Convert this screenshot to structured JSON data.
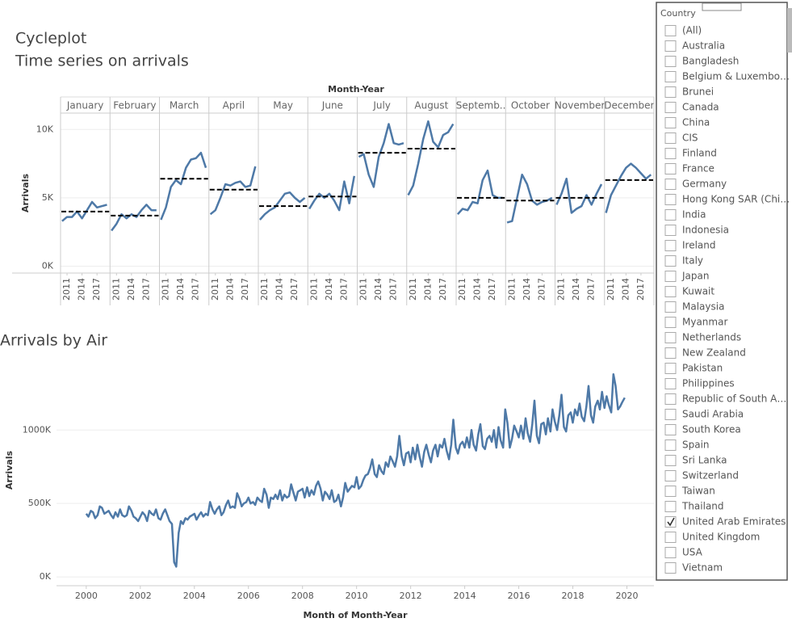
{
  "chart_data": [
    {
      "type": "cycleplot",
      "title": "Cycleplot",
      "subtitle": "Time series on arrivals",
      "column_header": "Month-Year",
      "y_label": "Arrivals",
      "categories": [
        "January",
        "February",
        "March",
        "April",
        "May",
        "June",
        "July",
        "August",
        "Septemb..",
        "October",
        "November",
        "December"
      ],
      "x": [
        2010,
        2011,
        2012,
        2013,
        2014,
        2015,
        2016,
        2017,
        2018,
        2019
      ],
      "xlim": [
        2009.7,
        2019.6
      ],
      "xticks": [
        2011,
        2014,
        2017
      ],
      "ylim": [
        -500,
        11200
      ],
      "yticks": [
        {
          "value": 0,
          "label": "0K"
        },
        {
          "value": 5000,
          "label": "5K"
        },
        {
          "value": 10000,
          "label": "10K"
        }
      ],
      "color": "#4e79a7",
      "average_color": "#000000",
      "grid": true,
      "panels": [
        {
          "values": [
            3300,
            3600,
            3600,
            4000,
            3500,
            4100,
            4700,
            4300,
            4400,
            4500
          ],
          "average": 4000
        },
        {
          "values": [
            2600,
            3100,
            3800,
            3500,
            3800,
            3600,
            4100,
            4500,
            4100,
            4100
          ],
          "average": 3700
        },
        {
          "values": [
            3400,
            4300,
            5800,
            6300,
            6000,
            7200,
            7800,
            7900,
            8300,
            7200
          ],
          "average": 6400
        },
        {
          "values": [
            3800,
            4100,
            5000,
            6000,
            5900,
            6100,
            6200,
            5800,
            5900,
            7300
          ],
          "average": 5600
        },
        {
          "values": [
            3400,
            3800,
            4100,
            4300,
            4800,
            5300,
            5400,
            5000,
            4700,
            5000
          ],
          "average": 4400
        },
        {
          "values": [
            4200,
            4800,
            5300,
            5000,
            5300,
            4800,
            4100,
            6200,
            4600,
            6600
          ],
          "average": 5100
        },
        {
          "values": [
            8000,
            8200,
            6700,
            5800,
            8000,
            9000,
            10400,
            9000,
            8900,
            9000
          ],
          "average": 8300
        },
        {
          "values": [
            5200,
            5900,
            7500,
            9300,
            10600,
            9100,
            8700,
            9600,
            9800,
            10400
          ],
          "average": 8600
        },
        {
          "values": [
            3800,
            4200,
            4100,
            4700,
            4600,
            6300,
            7000,
            5200,
            5000,
            5000
          ],
          "average": 5000
        },
        {
          "values": [
            3200,
            3300,
            5000,
            6700,
            6000,
            4800,
            4500,
            4700,
            4800,
            5000
          ],
          "average": 4800
        },
        {
          "values": [
            4500,
            5300,
            6400,
            3900,
            4200,
            4400,
            5200,
            4500,
            5300,
            6000
          ],
          "average": 5000
        },
        {
          "values": [
            3900,
            5200,
            5900,
            6600,
            7200,
            7500,
            7200,
            6800,
            6400,
            6700
          ],
          "average": 6300
        }
      ]
    },
    {
      "type": "line",
      "title": "Arrivals by Air",
      "x_label": "Month of Month-Year",
      "y_label": "Arrivals",
      "color": "#4e79a7",
      "grid": true,
      "xlim": [
        1998.9,
        2021
      ],
      "xticks": [
        2000,
        2002,
        2004,
        2006,
        2008,
        2010,
        2012,
        2014,
        2016,
        2018,
        2020
      ],
      "ylim": [
        -60000,
        1480000
      ],
      "yticks": [
        {
          "value": 0,
          "label": "0K"
        },
        {
          "value": 500000,
          "label": "500K"
        },
        {
          "value": 1000000,
          "label": "1000K"
        }
      ],
      "x": [
        2000,
        2000.08,
        2000.17,
        2000.25,
        2000.33,
        2000.42,
        2000.5,
        2000.58,
        2000.67,
        2000.75,
        2000.83,
        2000.92,
        2001,
        2001.08,
        2001.17,
        2001.25,
        2001.33,
        2001.42,
        2001.5,
        2001.58,
        2001.67,
        2001.75,
        2001.83,
        2001.92,
        2002,
        2002.08,
        2002.17,
        2002.25,
        2002.33,
        2002.42,
        2002.5,
        2002.58,
        2002.67,
        2002.75,
        2002.83,
        2002.92,
        2003,
        2003.08,
        2003.17,
        2003.25,
        2003.33,
        2003.42,
        2003.5,
        2003.58,
        2003.67,
        2003.75,
        2003.83,
        2003.92,
        2004,
        2004.08,
        2004.17,
        2004.25,
        2004.33,
        2004.42,
        2004.5,
        2004.58,
        2004.67,
        2004.75,
        2004.83,
        2004.92,
        2005,
        2005.08,
        2005.17,
        2005.25,
        2005.33,
        2005.42,
        2005.5,
        2005.58,
        2005.67,
        2005.75,
        2005.83,
        2005.92,
        2006,
        2006.08,
        2006.17,
        2006.25,
        2006.33,
        2006.42,
        2006.5,
        2006.58,
        2006.67,
        2006.75,
        2006.83,
        2006.92,
        2007,
        2007.08,
        2007.17,
        2007.25,
        2007.33,
        2007.42,
        2007.5,
        2007.58,
        2007.67,
        2007.75,
        2007.83,
        2007.92,
        2008,
        2008.08,
        2008.17,
        2008.25,
        2008.33,
        2008.42,
        2008.5,
        2008.58,
        2008.67,
        2008.75,
        2008.83,
        2008.92,
        2009,
        2009.08,
        2009.17,
        2009.25,
        2009.33,
        2009.42,
        2009.5,
        2009.58,
        2009.67,
        2009.75,
        2009.83,
        2009.92,
        2010,
        2010.08,
        2010.17,
        2010.25,
        2010.33,
        2010.42,
        2010.5,
        2010.58,
        2010.67,
        2010.75,
        2010.83,
        2010.92,
        2011,
        2011.08,
        2011.17,
        2011.25,
        2011.33,
        2011.42,
        2011.5,
        2011.58,
        2011.67,
        2011.75,
        2011.83,
        2011.92,
        2012,
        2012.08,
        2012.17,
        2012.25,
        2012.33,
        2012.42,
        2012.5,
        2012.58,
        2012.67,
        2012.75,
        2012.83,
        2012.92,
        2013,
        2013.08,
        2013.17,
        2013.25,
        2013.33,
        2013.42,
        2013.5,
        2013.58,
        2013.67,
        2013.75,
        2013.83,
        2013.92,
        2014,
        2014.08,
        2014.17,
        2014.25,
        2014.33,
        2014.42,
        2014.5,
        2014.58,
        2014.67,
        2014.75,
        2014.83,
        2014.92,
        2015,
        2015.08,
        2015.17,
        2015.25,
        2015.33,
        2015.42,
        2015.5,
        2015.58,
        2015.67,
        2015.75,
        2015.83,
        2015.92,
        2016,
        2016.08,
        2016.17,
        2016.25,
        2016.33,
        2016.42,
        2016.5,
        2016.58,
        2016.67,
        2016.75,
        2016.83,
        2016.92,
        2017,
        2017.08,
        2017.17,
        2017.25,
        2017.33,
        2017.42,
        2017.5,
        2017.58,
        2017.67,
        2017.75,
        2017.83,
        2017.92,
        2018,
        2018.08,
        2018.17,
        2018.25,
        2018.33,
        2018.42,
        2018.5,
        2018.58,
        2018.67,
        2018.75,
        2018.83,
        2018.92,
        2019,
        2019.08,
        2019.17,
        2019.25,
        2019.33,
        2019.42,
        2019.5,
        2019.58,
        2019.67,
        2019.75,
        2019.83,
        2019.92
      ],
      "values": [
        430000,
        410000,
        450000,
        440000,
        400000,
        420000,
        480000,
        470000,
        430000,
        440000,
        450000,
        420000,
        400000,
        440000,
        410000,
        460000,
        420000,
        410000,
        420000,
        480000,
        450000,
        410000,
        400000,
        380000,
        410000,
        440000,
        420000,
        380000,
        450000,
        430000,
        420000,
        460000,
        400000,
        390000,
        430000,
        460000,
        420000,
        380000,
        360000,
        100000,
        70000,
        300000,
        380000,
        360000,
        400000,
        390000,
        410000,
        420000,
        430000,
        390000,
        420000,
        440000,
        410000,
        430000,
        420000,
        510000,
        460000,
        430000,
        460000,
        480000,
        420000,
        440000,
        490000,
        520000,
        470000,
        480000,
        470000,
        570000,
        530000,
        480000,
        500000,
        510000,
        540000,
        500000,
        510000,
        490000,
        540000,
        520000,
        510000,
        600000,
        560000,
        470000,
        540000,
        530000,
        560000,
        530000,
        590000,
        520000,
        560000,
        540000,
        550000,
        630000,
        570000,
        520000,
        580000,
        590000,
        600000,
        540000,
        610000,
        550000,
        590000,
        560000,
        620000,
        650000,
        600000,
        520000,
        580000,
        560000,
        530000,
        590000,
        510000,
        520000,
        560000,
        480000,
        540000,
        640000,
        580000,
        600000,
        620000,
        610000,
        680000,
        600000,
        620000,
        660000,
        690000,
        700000,
        740000,
        800000,
        700000,
        680000,
        760000,
        720000,
        700000,
        780000,
        750000,
        820000,
        790000,
        750000,
        820000,
        960000,
        820000,
        760000,
        840000,
        850000,
        780000,
        880000,
        800000,
        900000,
        820000,
        750000,
        850000,
        900000,
        830000,
        780000,
        860000,
        900000,
        820000,
        900000,
        880000,
        940000,
        860000,
        800000,
        900000,
        1070000,
        880000,
        840000,
        900000,
        920000,
        880000,
        950000,
        880000,
        1000000,
        900000,
        860000,
        970000,
        1040000,
        890000,
        870000,
        940000,
        960000,
        920000,
        1000000,
        880000,
        1020000,
        930000,
        880000,
        1140000,
        1050000,
        880000,
        940000,
        1030000,
        990000,
        950000,
        1030000,
        940000,
        1080000,
        980000,
        920000,
        1040000,
        1200000,
        960000,
        910000,
        1040000,
        1050000,
        970000,
        1080000,
        990000,
        1140000,
        1060000,
        1000000,
        1100000,
        1240000,
        1020000,
        990000,
        1100000,
        1120000,
        1050000,
        1140000,
        1100000,
        1180000,
        1090000,
        1060000,
        1160000,
        1300000,
        1100000,
        1050000,
        1160000,
        1200000,
        1140000,
        1260000,
        1150000,
        1230000,
        1170000,
        1120000,
        1380000,
        1300000,
        1140000,
        1160000,
        1190000,
        1220000
      ]
    }
  ],
  "filter": {
    "title": "Country",
    "items": [
      {
        "label": "(All)",
        "checked": false
      },
      {
        "label": "Australia",
        "checked": false
      },
      {
        "label": "Bangladesh",
        "checked": false
      },
      {
        "label": "Belgium & Luxembo…",
        "checked": false
      },
      {
        "label": "Brunei",
        "checked": false
      },
      {
        "label": "Canada",
        "checked": false
      },
      {
        "label": "China",
        "checked": false
      },
      {
        "label": "CIS",
        "checked": false
      },
      {
        "label": "Finland",
        "checked": false
      },
      {
        "label": "France",
        "checked": false
      },
      {
        "label": "Germany",
        "checked": false
      },
      {
        "label": "Hong Kong SAR (Chi…",
        "checked": false
      },
      {
        "label": "India",
        "checked": false
      },
      {
        "label": "Indonesia",
        "checked": false
      },
      {
        "label": "Ireland",
        "checked": false
      },
      {
        "label": "Italy",
        "checked": false
      },
      {
        "label": "Japan",
        "checked": false
      },
      {
        "label": "Kuwait",
        "checked": false
      },
      {
        "label": "Malaysia",
        "checked": false
      },
      {
        "label": "Myanmar",
        "checked": false
      },
      {
        "label": "Netherlands",
        "checked": false
      },
      {
        "label": "New Zealand",
        "checked": false
      },
      {
        "label": "Pakistan",
        "checked": false
      },
      {
        "label": "Philippines",
        "checked": false
      },
      {
        "label": "Republic of South A…",
        "checked": false
      },
      {
        "label": "Saudi Arabia",
        "checked": false
      },
      {
        "label": "South Korea",
        "checked": false
      },
      {
        "label": "Spain",
        "checked": false
      },
      {
        "label": "Sri Lanka",
        "checked": false
      },
      {
        "label": "Switzerland",
        "checked": false
      },
      {
        "label": "Taiwan",
        "checked": false
      },
      {
        "label": "Thailand",
        "checked": false
      },
      {
        "label": "United Arab Emirates",
        "checked": true
      },
      {
        "label": "United Kingdom",
        "checked": false
      },
      {
        "label": "USA",
        "checked": false
      },
      {
        "label": "Vietnam",
        "checked": false
      }
    ]
  }
}
